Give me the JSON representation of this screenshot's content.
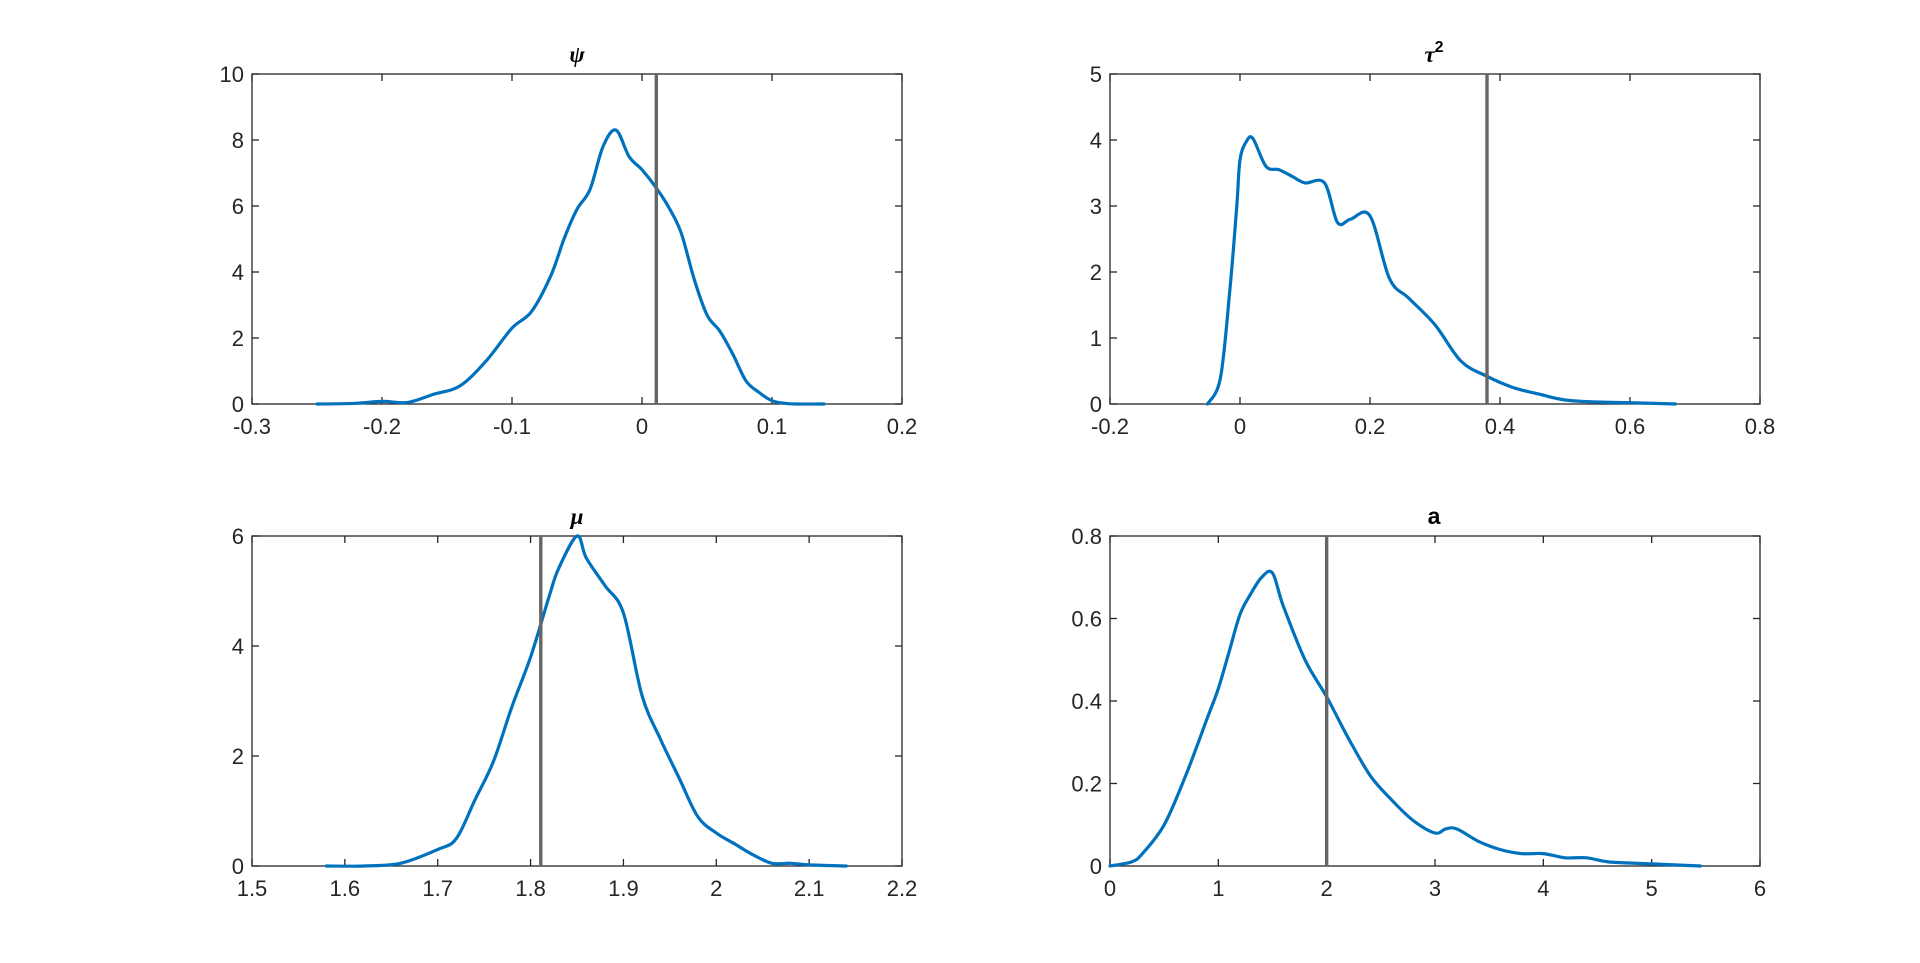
{
  "colors": {
    "density": "#0072BD",
    "reference_line": "#666666"
  },
  "chart_data": [
    {
      "type": "line",
      "title": "ψ",
      "title_style": "italic",
      "xlim": [
        -0.3,
        0.2
      ],
      "ylim": [
        0,
        10
      ],
      "xticks": [
        "-0.3",
        "-0.2",
        "-0.1",
        "0",
        "0.1",
        "0.2"
      ],
      "yticks": [
        "0",
        "2",
        "4",
        "6",
        "8",
        "10"
      ],
      "reference_x": 0.011,
      "series": [
        {
          "x": [
            -0.25,
            -0.22,
            -0.2,
            -0.18,
            -0.16,
            -0.14,
            -0.12,
            -0.1,
            -0.085,
            -0.07,
            -0.06,
            -0.05,
            -0.04,
            -0.03,
            -0.02,
            -0.01,
            0,
            0.01,
            0.02,
            0.03,
            0.04,
            0.05,
            0.06,
            0.07,
            0.08,
            0.09,
            0.1,
            0.11,
            0.12,
            0.14
          ],
          "y": [
            0,
            0.02,
            0.08,
            0.05,
            0.3,
            0.55,
            1.3,
            2.3,
            2.8,
            3.9,
            5.0,
            5.9,
            6.5,
            7.8,
            8.3,
            7.5,
            7.1,
            6.6,
            6.0,
            5.2,
            3.8,
            2.7,
            2.2,
            1.5,
            0.7,
            0.35,
            0.1,
            0.02,
            0.0,
            0.0
          ]
        }
      ]
    },
    {
      "type": "line",
      "title": "τ",
      "title_sup": "2",
      "title_style": "italic",
      "xlim": [
        -0.2,
        0.8
      ],
      "ylim": [
        0,
        5
      ],
      "xticks": [
        "-0.2",
        "0",
        "0.2",
        "0.4",
        "0.6",
        "0.8"
      ],
      "yticks": [
        "0",
        "1",
        "2",
        "3",
        "4",
        "5"
      ],
      "reference_x": 0.38,
      "series": [
        {
          "x": [
            -0.05,
            -0.03,
            -0.015,
            -0.005,
            0,
            0.01,
            0.02,
            0.04,
            0.06,
            0.08,
            0.1,
            0.13,
            0.15,
            0.17,
            0.2,
            0.23,
            0.26,
            0.3,
            0.34,
            0.38,
            0.42,
            0.46,
            0.5,
            0.55,
            0.6,
            0.67
          ],
          "y": [
            0,
            0.4,
            1.8,
            3.0,
            3.7,
            3.98,
            4.02,
            3.6,
            3.55,
            3.45,
            3.35,
            3.35,
            2.75,
            2.8,
            2.85,
            1.9,
            1.6,
            1.2,
            0.65,
            0.42,
            0.25,
            0.15,
            0.06,
            0.03,
            0.02,
            0.0
          ]
        }
      ]
    },
    {
      "type": "line",
      "title": "μ",
      "title_style": "italic",
      "xlim": [
        1.5,
        2.2
      ],
      "ylim": [
        0,
        6
      ],
      "xticks": [
        "1.5",
        "1.6",
        "1.7",
        "1.8",
        "1.9",
        "2",
        "2.1",
        "2.2"
      ],
      "yticks": [
        "0",
        "2",
        "4",
        "6"
      ],
      "reference_x": 1.811,
      "series": [
        {
          "x": [
            1.58,
            1.62,
            1.66,
            1.7,
            1.72,
            1.74,
            1.76,
            1.78,
            1.8,
            1.82,
            1.83,
            1.85,
            1.86,
            1.88,
            1.9,
            1.92,
            1.94,
            1.96,
            1.98,
            2.0,
            2.02,
            2.04,
            2.06,
            2.08,
            2.1,
            2.14
          ],
          "y": [
            0,
            0.0,
            0.05,
            0.3,
            0.5,
            1.2,
            1.9,
            2.9,
            3.8,
            4.9,
            5.4,
            6.0,
            5.6,
            5.1,
            4.6,
            3.1,
            2.3,
            1.6,
            0.9,
            0.6,
            0.4,
            0.2,
            0.05,
            0.05,
            0.02,
            0.0
          ]
        }
      ]
    },
    {
      "type": "line",
      "title": "a",
      "title_style": "bold",
      "xlim": [
        0,
        6
      ],
      "ylim": [
        0,
        0.8
      ],
      "xticks": [
        "0",
        "1",
        "2",
        "3",
        "4",
        "5",
        "6"
      ],
      "yticks": [
        "0",
        "0.2",
        "0.4",
        "0.6",
        "0.8"
      ],
      "reference_x": 2.0,
      "series": [
        {
          "x": [
            0.0,
            0.2,
            0.3,
            0.5,
            0.7,
            0.9,
            1.0,
            1.1,
            1.2,
            1.3,
            1.4,
            1.5,
            1.6,
            1.8,
            2.0,
            2.2,
            2.4,
            2.6,
            2.8,
            3.0,
            3.1,
            3.2,
            3.4,
            3.6,
            3.8,
            4.0,
            4.2,
            4.4,
            4.6,
            5.0,
            5.45
          ],
          "y": [
            0.0,
            0.01,
            0.03,
            0.1,
            0.22,
            0.36,
            0.43,
            0.52,
            0.61,
            0.66,
            0.7,
            0.71,
            0.63,
            0.5,
            0.41,
            0.31,
            0.22,
            0.16,
            0.11,
            0.08,
            0.09,
            0.09,
            0.06,
            0.04,
            0.03,
            0.03,
            0.02,
            0.02,
            0.01,
            0.005,
            0.0
          ]
        }
      ]
    }
  ]
}
